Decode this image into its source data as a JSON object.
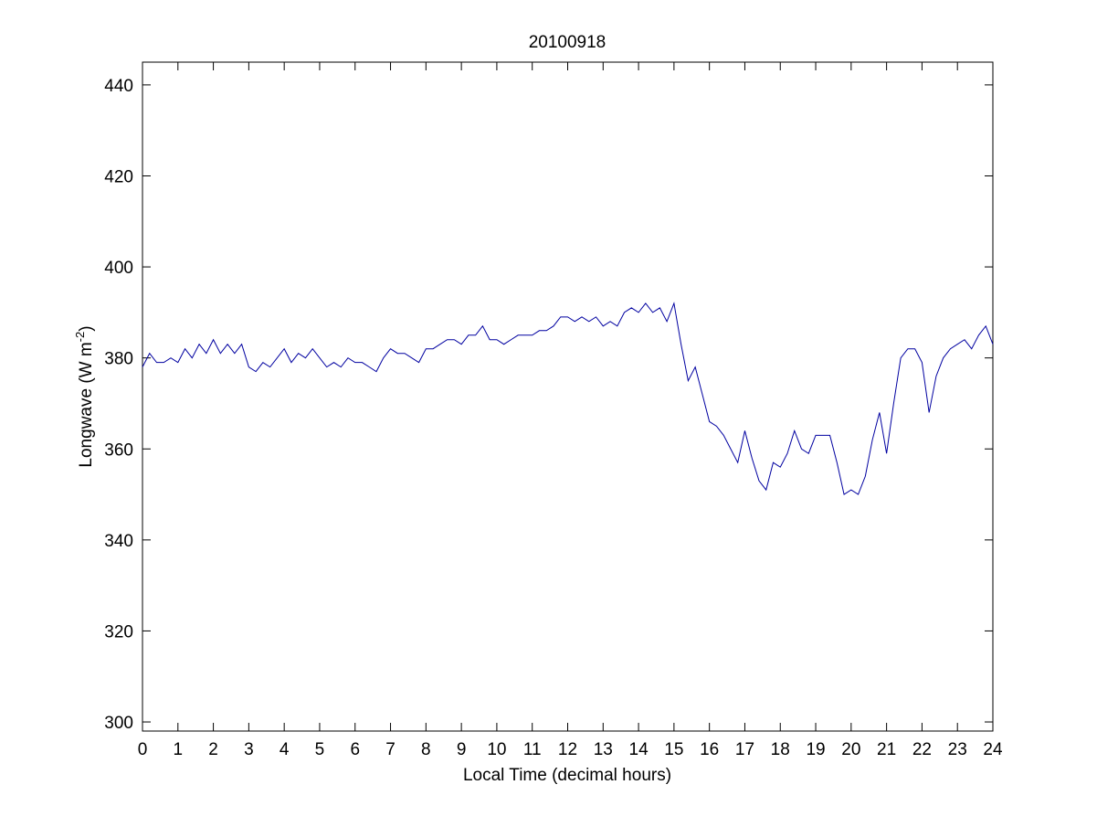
{
  "chart_data": {
    "type": "line",
    "title": "20100918",
    "xlabel": "Local Time (decimal hours)",
    "ylabel": [
      "Longwave (W m",
      "-2",
      ")"
    ],
    "x": [
      0,
      0.2,
      0.4,
      0.6,
      0.8,
      1,
      1.2,
      1.4,
      1.6,
      1.8,
      2,
      2.2,
      2.4,
      2.6,
      2.8,
      3,
      3.2,
      3.4,
      3.6,
      3.8,
      4,
      4.2,
      4.4,
      4.6,
      4.8,
      5,
      5.2,
      5.4,
      5.6,
      5.8,
      6,
      6.2,
      6.4,
      6.6,
      6.8,
      7,
      7.2,
      7.4,
      7.6,
      7.8,
      8,
      8.2,
      8.4,
      8.6,
      8.8,
      9,
      9.2,
      9.4,
      9.6,
      9.8,
      10,
      10.2,
      10.4,
      10.6,
      10.8,
      11,
      11.2,
      11.4,
      11.6,
      11.8,
      12,
      12.2,
      12.4,
      12.6,
      12.8,
      13,
      13.2,
      13.4,
      13.6,
      13.8,
      14,
      14.2,
      14.4,
      14.6,
      14.8,
      15,
      15.2,
      15.4,
      15.6,
      15.8,
      16,
      16.2,
      16.4,
      16.6,
      16.8,
      17,
      17.2,
      17.4,
      17.6,
      17.8,
      18,
      18.2,
      18.4,
      18.6,
      18.8,
      19,
      19.2,
      19.4,
      19.6,
      19.8,
      20,
      20.2,
      20.4,
      20.6,
      20.8,
      21,
      21.2,
      21.4,
      21.6,
      21.8,
      22,
      22.2,
      22.4,
      22.6,
      22.8,
      23,
      23.2,
      23.4,
      23.6,
      23.8,
      24
    ],
    "series": [
      {
        "color": "#0000a0",
        "values": [
          378,
          381,
          379,
          379,
          380,
          379,
          382,
          380,
          383,
          381,
          384,
          381,
          383,
          381,
          383,
          378,
          377,
          379,
          378,
          380,
          382,
          379,
          381,
          380,
          382,
          380,
          378,
          379,
          378,
          380,
          379,
          379,
          378,
          377,
          380,
          382,
          381,
          381,
          380,
          379,
          382,
          382,
          383,
          384,
          384,
          383,
          385,
          385,
          387,
          384,
          384,
          383,
          384,
          385,
          385,
          385,
          386,
          386,
          387,
          389,
          389,
          388,
          389,
          388,
          389,
          387,
          388,
          387,
          390,
          391,
          390,
          392,
          390,
          391,
          388,
          392,
          383,
          375,
          378,
          372,
          366,
          365,
          363,
          360,
          357,
          364,
          358,
          353,
          351,
          357,
          356,
          359,
          364,
          360,
          359,
          363,
          363,
          363,
          357,
          350,
          351,
          350,
          354,
          362,
          368,
          359,
          370,
          380,
          382,
          382,
          379,
          368,
          376,
          380,
          382,
          383,
          384,
          382,
          385,
          387,
          383
        ]
      }
    ],
    "xlim": [
      0,
      24
    ],
    "xticks": [
      0,
      1,
      2,
      3,
      4,
      5,
      6,
      7,
      8,
      9,
      10,
      11,
      12,
      13,
      14,
      15,
      16,
      17,
      18,
      19,
      20,
      21,
      22,
      23,
      24
    ],
    "ylim": [
      298,
      445
    ],
    "yticks": [
      300,
      320,
      340,
      360,
      380,
      400,
      420,
      440
    ]
  }
}
